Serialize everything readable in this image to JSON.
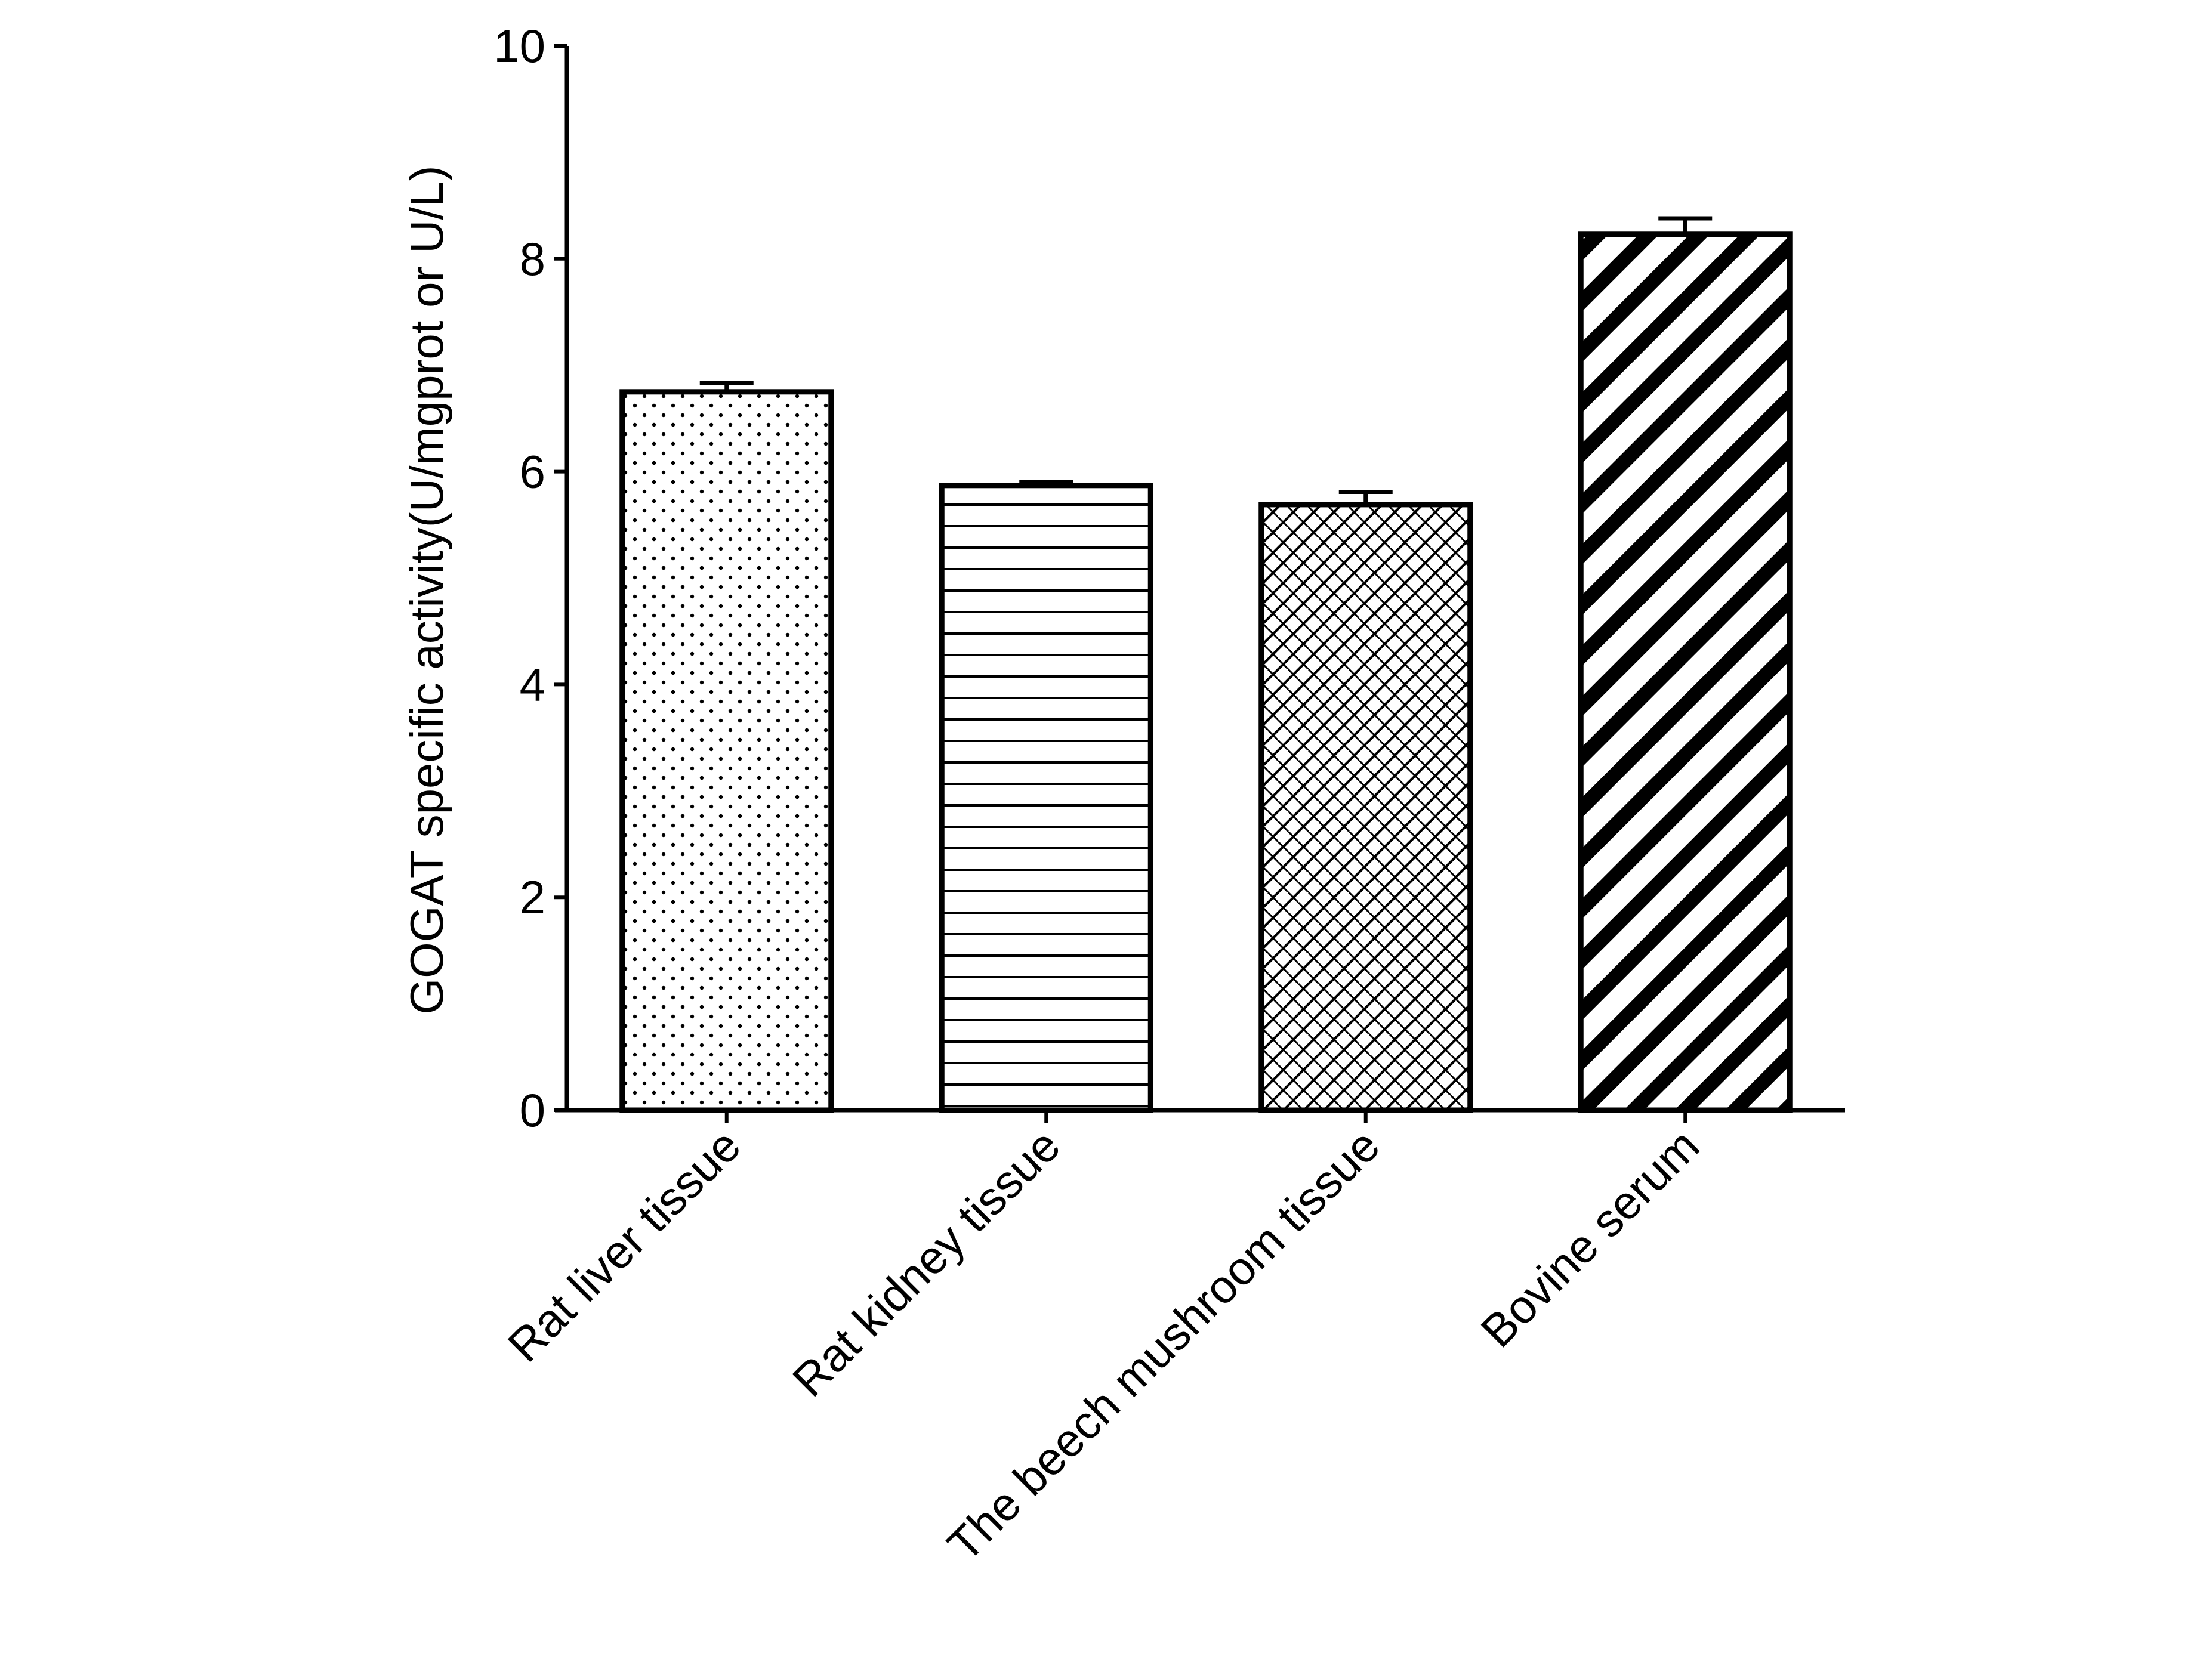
{
  "chart_data": {
    "type": "bar",
    "categories": [
      "Rat liver tissue",
      "Rat kidney tissue",
      "The beech mushroom tissue",
      "Bovine serum"
    ],
    "series": [
      {
        "values": [
          6.75,
          5.87,
          5.69,
          8.23
        ],
        "errors": [
          0.08,
          0.03,
          0.12,
          0.15
        ]
      }
    ],
    "ylabel": "GOGAT specific activity(U/mgprot or U/L)",
    "xlabel": "",
    "ylim": [
      0,
      10
    ],
    "yticks": [
      0,
      2,
      4,
      6,
      8,
      10
    ],
    "grid": false,
    "bar_patterns": [
      "dots",
      "horizontal-lines",
      "crosshatch",
      "diagonal-stripes"
    ],
    "colors": {
      "bar_stroke": "#000000",
      "bar_fill": "#ffffff"
    }
  }
}
